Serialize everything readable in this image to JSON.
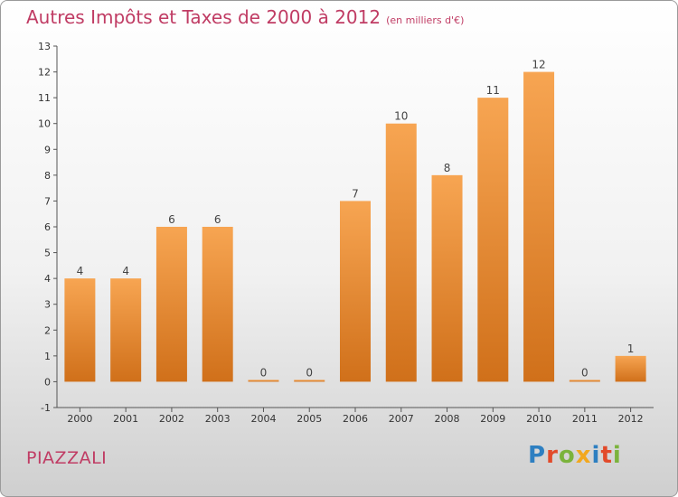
{
  "header": {
    "title": "Autres Impôts et Taxes de 2000 à 2012",
    "unit": "(en milliers d'€)"
  },
  "footer": {
    "commune": "PIAZZALI",
    "logo": "Proxiti",
    "logo_colors": [
      "#2d7fc1",
      "#e24a2a",
      "#7bb33c",
      "#f2a81e",
      "#2d7fc1",
      "#e24a2a",
      "#7bb33c"
    ]
  },
  "colors": {
    "bar_top": "#f7a552",
    "bar_bottom": "#d0701a",
    "title": "#c03c64",
    "label": "#444444"
  },
  "chart_data": {
    "type": "bar",
    "title": "Autres Impôts et Taxes de 2000 à 2012",
    "subtitle": "(en milliers d'€)",
    "categories": [
      "2000",
      "2001",
      "2002",
      "2003",
      "2004",
      "2005",
      "2006",
      "2007",
      "2008",
      "2009",
      "2010",
      "2011",
      "2012"
    ],
    "values": [
      4,
      4,
      6,
      6,
      0,
      0,
      7,
      10,
      8,
      11,
      12,
      0,
      1
    ],
    "ylim": [
      -1,
      13
    ],
    "yticks": [
      -1,
      0,
      1,
      2,
      3,
      4,
      5,
      6,
      7,
      8,
      9,
      10,
      11,
      12,
      13
    ],
    "grid": false,
    "xlabel": "",
    "ylabel": ""
  }
}
